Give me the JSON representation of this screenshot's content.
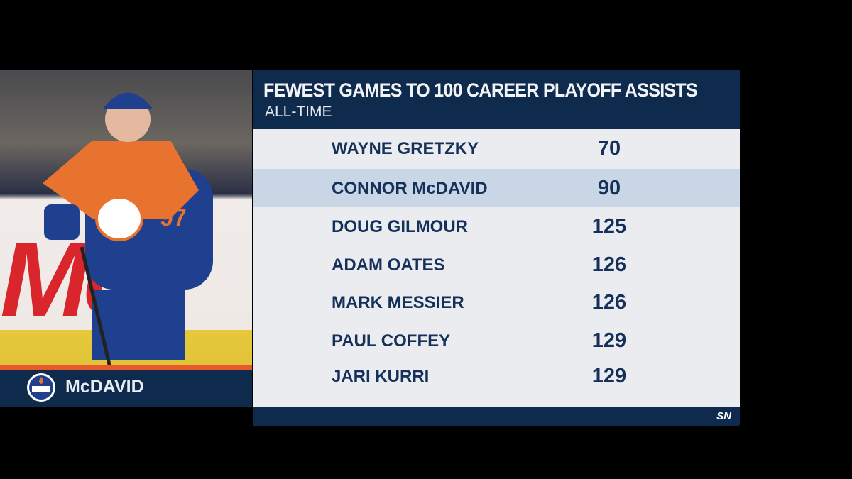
{
  "graphic": {
    "title": "FEWEST GAMES TO 100 CAREER PLAYOFF ASSISTS",
    "subtitle": "ALL-TIME",
    "rows": [
      {
        "name": "WAYNE GRETZKY",
        "value": "70",
        "highlight": false
      },
      {
        "name": "CONNOR McDAVID",
        "value": "90",
        "highlight": true
      },
      {
        "name": "DOUG GILMOUR",
        "value": "125",
        "highlight": false
      },
      {
        "name": "ADAM OATES",
        "value": "126",
        "highlight": false
      },
      {
        "name": "MARK MESSIER",
        "value": "126",
        "highlight": false
      },
      {
        "name": "PAUL COFFEY",
        "value": "129",
        "highlight": false
      },
      {
        "name": "JARI KURRI",
        "value": "129",
        "highlight": false
      }
    ],
    "network_logo": "SN"
  },
  "player": {
    "name": "McDAVID",
    "jersey_number": "97",
    "team_logo": "OILERS"
  },
  "colors": {
    "navy": "#0e2a4d",
    "orange": "#e8582a",
    "highlight": "#c8d6e5",
    "row_bg": "#eaecef"
  }
}
